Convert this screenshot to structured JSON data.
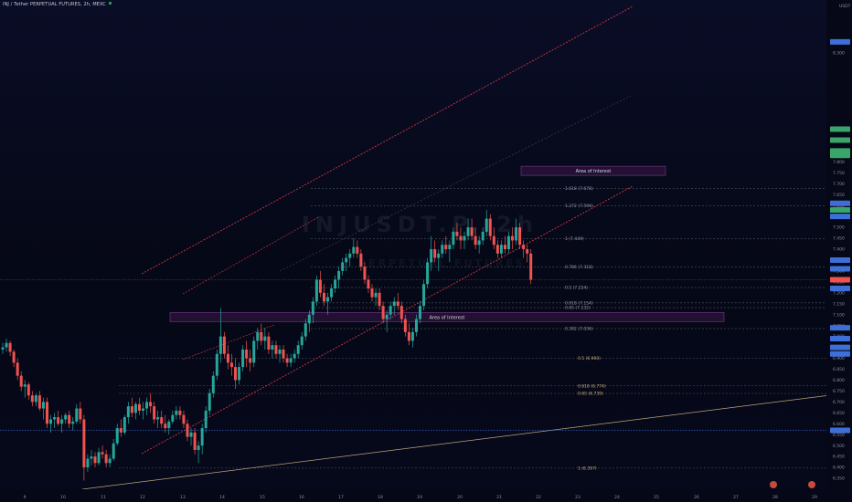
{
  "header": {
    "title": "INJ / Tether PERPETUAL FUTURES, 2h, MEXC"
  },
  "watermark": {
    "symbol": "INJUSDT.P, 2h",
    "subtitle": "PERPETUAL FUTURES"
  },
  "colors": {
    "background": "#07091a",
    "up": "#26a69a",
    "down": "#ef5350",
    "channel": "#e53948",
    "zone_fill": "#3a1848",
    "zone_border": "#7a3a8a",
    "fib_line": "#6b6f80",
    "support_line": "#b8a37a",
    "blue_line": "#3d6fd8"
  },
  "chart_data": {
    "type": "candlestick",
    "y_axis": {
      "currency": "USDT",
      "range": [
        6.3,
        8.5
      ],
      "ticks": [
        "8.350",
        "8.300",
        "7.950",
        "7.800",
        "7.750",
        "7.700",
        "7.650",
        "7.600",
        "7.550",
        "7.500",
        "7.450",
        "7.400",
        "7.350",
        "7.300",
        "7.250",
        "7.200",
        "7.150",
        "7.100",
        "7.050",
        "7.000",
        "6.950",
        "6.900",
        "6.850",
        "6.800",
        "6.750",
        "6.700",
        "6.650",
        "6.600",
        "6.550",
        "6.500",
        "6.450",
        "6.400",
        "6.350"
      ]
    },
    "x_axis": {
      "labels": [
        "9",
        "10",
        "11",
        "12",
        "13",
        "14",
        "15",
        "16",
        "17",
        "18",
        "19",
        "20",
        "21",
        "22",
        "23",
        "24",
        "25",
        "26",
        "27",
        "28",
        "29"
      ]
    },
    "candles": [
      [
        6.94,
        6.97,
        6.92,
        6.95
      ],
      [
        6.95,
        6.99,
        6.93,
        6.97
      ],
      [
        6.97,
        6.98,
        6.91,
        6.93
      ],
      [
        6.93,
        6.94,
        6.86,
        6.88
      ],
      [
        6.88,
        6.9,
        6.8,
        6.82
      ],
      [
        6.82,
        6.84,
        6.75,
        6.77
      ],
      [
        6.77,
        6.8,
        6.72,
        6.78
      ],
      [
        6.78,
        6.79,
        6.71,
        6.73
      ],
      [
        6.73,
        6.75,
        6.68,
        6.7
      ],
      [
        6.7,
        6.74,
        6.68,
        6.73
      ],
      [
        6.73,
        6.75,
        6.66,
        6.67
      ],
      [
        6.67,
        6.72,
        6.62,
        6.7
      ],
      [
        6.7,
        6.72,
        6.58,
        6.6
      ],
      [
        6.6,
        6.64,
        6.56,
        6.62
      ],
      [
        6.62,
        6.65,
        6.58,
        6.63
      ],
      [
        6.63,
        6.66,
        6.59,
        6.6
      ],
      [
        6.6,
        6.64,
        6.56,
        6.62
      ],
      [
        6.62,
        6.65,
        6.6,
        6.64
      ],
      [
        6.64,
        6.66,
        6.58,
        6.6
      ],
      [
        6.6,
        6.63,
        6.57,
        6.61
      ],
      [
        6.61,
        6.69,
        6.6,
        6.67
      ],
      [
        6.67,
        6.7,
        6.6,
        6.62
      ],
      [
        6.62,
        6.64,
        6.34,
        6.4
      ],
      [
        6.4,
        6.46,
        6.38,
        6.44
      ],
      [
        6.44,
        6.48,
        6.41,
        6.45
      ],
      [
        6.45,
        6.47,
        6.4,
        6.42
      ],
      [
        6.42,
        6.49,
        6.41,
        6.47
      ],
      [
        6.47,
        6.5,
        6.44,
        6.46
      ],
      [
        6.46,
        6.48,
        6.4,
        6.42
      ],
      [
        6.42,
        6.46,
        6.4,
        6.44
      ],
      [
        6.44,
        6.53,
        6.43,
        6.51
      ],
      [
        6.51,
        6.6,
        6.5,
        6.58
      ],
      [
        6.58,
        6.62,
        6.54,
        6.56
      ],
      [
        6.56,
        6.64,
        6.55,
        6.63
      ],
      [
        6.63,
        6.7,
        6.6,
        6.68
      ],
      [
        6.68,
        6.72,
        6.63,
        6.65
      ],
      [
        6.65,
        6.7,
        6.62,
        6.69
      ],
      [
        6.69,
        6.72,
        6.64,
        6.66
      ],
      [
        6.66,
        6.7,
        6.62,
        6.67
      ],
      [
        6.67,
        6.72,
        6.64,
        6.7
      ],
      [
        6.7,
        6.74,
        6.65,
        6.68
      ],
      [
        6.68,
        6.7,
        6.6,
        6.62
      ],
      [
        6.62,
        6.66,
        6.58,
        6.63
      ],
      [
        6.63,
        6.66,
        6.58,
        6.6
      ],
      [
        6.6,
        6.64,
        6.56,
        6.58
      ],
      [
        6.58,
        6.62,
        6.55,
        6.61
      ],
      [
        6.61,
        6.66,
        6.6,
        6.64
      ],
      [
        6.64,
        6.68,
        6.62,
        6.66
      ],
      [
        6.66,
        6.68,
        6.62,
        6.64
      ],
      [
        6.64,
        6.66,
        6.58,
        6.6
      ],
      [
        6.6,
        6.62,
        6.52,
        6.54
      ],
      [
        6.54,
        6.58,
        6.5,
        6.56
      ],
      [
        6.56,
        6.58,
        6.46,
        6.48
      ],
      [
        6.48,
        6.52,
        6.42,
        6.5
      ],
      [
        6.5,
        6.6,
        6.46,
        6.58
      ],
      [
        6.58,
        6.68,
        6.56,
        6.66
      ],
      [
        6.66,
        6.76,
        6.64,
        6.74
      ],
      [
        6.74,
        6.84,
        6.72,
        6.82
      ],
      [
        6.82,
        6.94,
        6.8,
        6.92
      ],
      [
        6.92,
        7.13,
        6.88,
        7.0
      ],
      [
        7.0,
        7.02,
        6.9,
        6.92
      ],
      [
        6.92,
        6.96,
        6.85,
        6.88
      ],
      [
        6.88,
        6.92,
        6.82,
        6.86
      ],
      [
        6.86,
        6.9,
        6.76,
        6.8
      ],
      [
        6.8,
        6.88,
        6.78,
        6.86
      ],
      [
        6.86,
        6.96,
        6.84,
        6.94
      ],
      [
        6.94,
        6.98,
        6.86,
        6.9
      ],
      [
        6.9,
        6.94,
        6.84,
        6.88
      ],
      [
        6.88,
        7.0,
        6.86,
        6.98
      ],
      [
        6.98,
        7.04,
        6.94,
        7.02
      ],
      [
        7.02,
        7.06,
        6.96,
        6.98
      ],
      [
        6.98,
        7.04,
        6.94,
        7.0
      ],
      [
        7.0,
        7.02,
        6.92,
        6.94
      ],
      [
        6.94,
        6.98,
        6.9,
        6.96
      ],
      [
        6.96,
        6.98,
        6.9,
        6.92
      ],
      [
        6.92,
        6.96,
        6.88,
        6.94
      ],
      [
        6.94,
        6.96,
        6.88,
        6.9
      ],
      [
        6.9,
        6.92,
        6.86,
        6.88
      ],
      [
        6.88,
        6.92,
        6.86,
        6.9
      ],
      [
        6.9,
        6.94,
        6.88,
        6.92
      ],
      [
        6.92,
        6.98,
        6.9,
        6.96
      ],
      [
        6.96,
        7.02,
        6.94,
        7.0
      ],
      [
        7.0,
        7.08,
        6.98,
        7.06
      ],
      [
        7.06,
        7.12,
        7.02,
        7.1
      ],
      [
        7.1,
        7.18,
        7.06,
        7.16
      ],
      [
        7.16,
        7.28,
        7.14,
        7.26
      ],
      [
        7.26,
        7.3,
        7.18,
        7.2
      ],
      [
        7.2,
        7.24,
        7.14,
        7.16
      ],
      [
        7.16,
        7.2,
        7.1,
        7.18
      ],
      [
        7.18,
        7.24,
        7.16,
        7.22
      ],
      [
        7.22,
        7.28,
        7.2,
        7.26
      ],
      [
        7.26,
        7.32,
        7.22,
        7.3
      ],
      [
        7.3,
        7.36,
        7.28,
        7.34
      ],
      [
        7.34,
        7.38,
        7.3,
        7.36
      ],
      [
        7.36,
        7.4,
        7.32,
        7.38
      ],
      [
        7.38,
        7.45,
        7.36,
        7.41
      ],
      [
        7.41,
        7.44,
        7.36,
        7.38
      ],
      [
        7.38,
        7.4,
        7.3,
        7.32
      ],
      [
        7.32,
        7.34,
        7.24,
        7.26
      ],
      [
        7.26,
        7.28,
        7.2,
        7.22
      ],
      [
        7.22,
        7.24,
        7.16,
        7.18
      ],
      [
        7.18,
        7.22,
        7.14,
        7.2
      ],
      [
        7.2,
        7.22,
        7.12,
        7.14
      ],
      [
        7.14,
        7.16,
        7.06,
        7.08
      ],
      [
        7.08,
        7.12,
        7.02,
        7.1
      ],
      [
        7.1,
        7.16,
        7.08,
        7.14
      ],
      [
        7.14,
        7.18,
        7.1,
        7.16
      ],
      [
        7.16,
        7.2,
        7.12,
        7.14
      ],
      [
        7.14,
        7.16,
        7.06,
        7.08
      ],
      [
        7.08,
        7.1,
        7.0,
        7.02
      ],
      [
        7.02,
        7.06,
        6.96,
        6.98
      ],
      [
        6.98,
        7.04,
        6.95,
        7.02
      ],
      [
        7.02,
        7.1,
        7.0,
        7.08
      ],
      [
        7.08,
        7.16,
        7.06,
        7.14
      ],
      [
        7.14,
        7.26,
        7.12,
        7.24
      ],
      [
        7.24,
        7.36,
        7.22,
        7.34
      ],
      [
        7.34,
        7.46,
        7.3,
        7.4
      ],
      [
        7.4,
        7.44,
        7.34,
        7.36
      ],
      [
        7.36,
        7.4,
        7.3,
        7.38
      ],
      [
        7.38,
        7.44,
        7.36,
        7.42
      ],
      [
        7.42,
        7.46,
        7.38,
        7.4
      ],
      [
        7.4,
        7.44,
        7.34,
        7.42
      ],
      [
        7.42,
        7.5,
        7.4,
        7.48
      ],
      [
        7.48,
        7.52,
        7.44,
        7.46
      ],
      [
        7.46,
        7.5,
        7.4,
        7.44
      ],
      [
        7.44,
        7.48,
        7.4,
        7.46
      ],
      [
        7.46,
        7.54,
        7.44,
        7.5
      ],
      [
        7.5,
        7.54,
        7.44,
        7.46
      ],
      [
        7.46,
        7.5,
        7.4,
        7.42
      ],
      [
        7.42,
        7.46,
        7.38,
        7.44
      ],
      [
        7.44,
        7.5,
        7.42,
        7.48
      ],
      [
        7.48,
        7.58,
        7.46,
        7.54
      ],
      [
        7.54,
        7.56,
        7.44,
        7.46
      ],
      [
        7.46,
        7.5,
        7.4,
        7.42
      ],
      [
        7.42,
        7.44,
        7.36,
        7.38
      ],
      [
        7.38,
        7.44,
        7.36,
        7.42
      ],
      [
        7.42,
        7.46,
        7.38,
        7.4
      ],
      [
        7.4,
        7.48,
        7.38,
        7.46
      ],
      [
        7.46,
        7.5,
        7.4,
        7.44
      ],
      [
        7.44,
        7.54,
        7.42,
        7.5
      ],
      [
        7.5,
        7.52,
        7.4,
        7.42
      ],
      [
        7.42,
        7.44,
        7.36,
        7.4
      ],
      [
        7.4,
        7.42,
        7.34,
        7.38
      ],
      [
        7.38,
        7.4,
        7.24,
        7.26
      ]
    ],
    "channel": {
      "upper": [
        [
          6.4,
          7.1
        ],
        [
          106,
          8.5
        ]
      ],
      "lower": [
        [
          6.4,
          6.38
        ],
        [
          106,
          7.45
        ]
      ]
    },
    "annotations": {
      "zones": [
        {
          "label": "Area of Interest",
          "x_start": 93,
          "x_end": 127,
          "top": 7.78,
          "bottom": 7.74
        },
        {
          "label": "Area of Interest",
          "x_start": 15,
          "x_end": 136,
          "top": 7.11,
          "bottom": 7.08
        }
      ],
      "fib_levels_right": [
        {
          "label": "1.618 (7.678)",
          "y": 7.678
        },
        {
          "label": "1.272 (7.599)",
          "y": 7.599
        },
        {
          "label": "1 (7.449)",
          "y": 7.449
        },
        {
          "label": "0.786 (7.318)",
          "y": 7.318
        },
        {
          "label": "0.5 (7.224)",
          "y": 7.224
        },
        {
          "label": "0.618 (7.154)",
          "y": 7.154
        },
        {
          "label": "0.65 (7.132)",
          "y": 7.132
        },
        {
          "label": "0.382 (7.036)",
          "y": 7.036
        }
      ],
      "fib_levels_left": [
        {
          "label": "0.5 (6.900)",
          "y": 6.9
        },
        {
          "label": "0.618 (6.774)",
          "y": 6.774
        },
        {
          "label": "0.65 (6.739)",
          "y": 6.739
        },
        {
          "label": "1 (6.397)",
          "y": 6.397
        }
      ]
    }
  }
}
